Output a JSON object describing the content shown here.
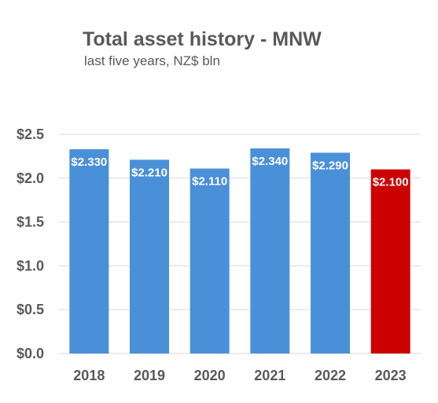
{
  "chart_data": {
    "type": "bar",
    "title": "Total asset history - MNW",
    "subtitle": "last five years, NZ$ bln",
    "xlabel": "",
    "ylabel": "",
    "categories": [
      "2018",
      "2019",
      "2020",
      "2021",
      "2022",
      "2023"
    ],
    "values": [
      2.33,
      2.21,
      2.11,
      2.34,
      2.29,
      2.1
    ],
    "data_labels": [
      "$2.330",
      "$2.210",
      "$2.110",
      "$2.340",
      "$2.290",
      "$2.100"
    ],
    "ylim": [
      0,
      2.5
    ],
    "yticks": [
      0,
      0.5,
      1.0,
      1.5,
      2.0,
      2.5
    ],
    "ytick_labels": [
      "$0.0",
      "$0.5",
      "$1.0",
      "$1.5",
      "$2.0",
      "$2.5"
    ],
    "grid": true,
    "legend": "none",
    "colors": {
      "bar": "#4a90d9",
      "highlight": "#cc0000",
      "grid": "#d9d9d9",
      "text": "#595959"
    },
    "highlight_index": 5
  }
}
